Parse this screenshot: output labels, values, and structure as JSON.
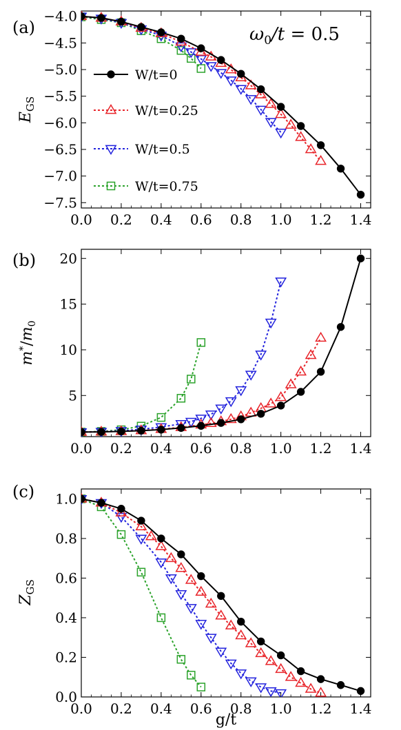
{
  "colors": {
    "W/t=0": "#000000",
    "W/t=0.25": "#e8242a",
    "W/t=0.5": "#2222dd",
    "W/t=0.75": "#2aa22a"
  },
  "chart_data": [
    {
      "type": "line",
      "panel_label": "(a)",
      "ylabel": "E_GS",
      "xlabel": "",
      "annotation": "ω0/t = 0.5",
      "xlim": [
        0,
        1.45
      ],
      "ylim": [
        -7.6,
        -3.9
      ],
      "xticks": [
        0.0,
        0.2,
        0.4,
        0.6,
        0.8,
        1.0,
        1.2,
        1.4
      ],
      "xtick_labels": [
        "0.0",
        "0.2",
        "0.4",
        "0.6",
        "0.8",
        "1.0",
        "1.2",
        "1.4"
      ],
      "yticks": [
        -4.0,
        -4.5,
        -5.0,
        -5.5,
        -6.0,
        -6.5,
        -7.0,
        -7.5
      ],
      "ytick_labels": [
        "−4.0",
        "−4.5",
        "−5.0",
        "−5.5",
        "−6.0",
        "−6.5",
        "−7.0",
        "−7.5"
      ],
      "legend": "inside-left",
      "series": [
        {
          "name": "W/t=0",
          "marker": "circle",
          "dash": false,
          "x": [
            0,
            0.1,
            0.2,
            0.3,
            0.4,
            0.5,
            0.6,
            0.7,
            0.8,
            0.9,
            1.0,
            1.1,
            1.2,
            1.3,
            1.4
          ],
          "y": [
            -4.0,
            -4.03,
            -4.1,
            -4.2,
            -4.3,
            -4.42,
            -4.6,
            -4.82,
            -5.08,
            -5.37,
            -5.7,
            -6.06,
            -6.42,
            -6.86,
            -7.35
          ]
        },
        {
          "name": "W/t=0.25",
          "marker": "triangle-up",
          "dash": true,
          "x": [
            0,
            0.1,
            0.2,
            0.3,
            0.4,
            0.5,
            0.6,
            0.65,
            0.7,
            0.75,
            0.8,
            0.85,
            0.9,
            0.95,
            1.0,
            1.05,
            1.1,
            1.15,
            1.2
          ],
          "y": [
            -4.0,
            -4.03,
            -4.1,
            -4.22,
            -4.32,
            -4.48,
            -4.67,
            -4.76,
            -4.88,
            -5.0,
            -5.15,
            -5.3,
            -5.47,
            -5.65,
            -5.84,
            -6.04,
            -6.27,
            -6.5,
            -6.72
          ]
        },
        {
          "name": "W/t=0.5",
          "marker": "triangle-down",
          "dash": true,
          "x": [
            0,
            0.1,
            0.2,
            0.3,
            0.4,
            0.5,
            0.55,
            0.6,
            0.65,
            0.7,
            0.75,
            0.8,
            0.85,
            0.9,
            0.95,
            1.0
          ],
          "y": [
            -4.0,
            -4.04,
            -4.12,
            -4.24,
            -4.36,
            -4.56,
            -4.67,
            -4.8,
            -4.93,
            -5.06,
            -5.2,
            -5.36,
            -5.55,
            -5.75,
            -5.98,
            -6.18
          ]
        },
        {
          "name": "W/t=0.75",
          "marker": "square",
          "dash": true,
          "x": [
            0,
            0.1,
            0.2,
            0.3,
            0.4,
            0.5,
            0.55,
            0.6
          ],
          "y": [
            -4.01,
            -4.06,
            -4.12,
            -4.27,
            -4.42,
            -4.64,
            -4.79,
            -4.98
          ]
        }
      ]
    },
    {
      "type": "line",
      "panel_label": "(b)",
      "ylabel": "m*/m0",
      "xlabel": "",
      "xlim": [
        0,
        1.45
      ],
      "ylim": [
        0.5,
        21
      ],
      "xticks": [
        0.0,
        0.2,
        0.4,
        0.6,
        0.8,
        1.0,
        1.2,
        1.4
      ],
      "xtick_labels": [
        "0.0",
        "0.2",
        "0.4",
        "0.6",
        "0.8",
        "1.0",
        "1.2",
        "1.4"
      ],
      "yticks": [
        5,
        10,
        15,
        20
      ],
      "ytick_labels": [
        "5",
        "10",
        "15",
        "20"
      ],
      "series": [
        {
          "name": "W/t=0",
          "marker": "circle",
          "dash": false,
          "x": [
            0,
            0.1,
            0.2,
            0.3,
            0.4,
            0.5,
            0.6,
            0.7,
            0.8,
            0.9,
            1.0,
            1.1,
            1.2,
            1.3,
            1.4
          ],
          "y": [
            1.0,
            1.02,
            1.07,
            1.15,
            1.27,
            1.45,
            1.68,
            2.0,
            2.4,
            3.0,
            3.9,
            5.4,
            7.6,
            12.5,
            20.0
          ]
        },
        {
          "name": "W/t=0.25",
          "marker": "triangle-up",
          "dash": true,
          "x": [
            0,
            0.1,
            0.2,
            0.3,
            0.4,
            0.5,
            0.6,
            0.65,
            0.7,
            0.75,
            0.8,
            0.85,
            0.9,
            0.95,
            1.0,
            1.05,
            1.1,
            1.15,
            1.2
          ],
          "y": [
            1.0,
            1.03,
            1.08,
            1.17,
            1.31,
            1.52,
            1.8,
            1.96,
            2.16,
            2.4,
            2.7,
            3.1,
            3.6,
            4.1,
            4.8,
            6.2,
            7.6,
            9.4,
            11.3
          ]
        },
        {
          "name": "W/t=0.5",
          "marker": "triangle-down",
          "dash": true,
          "x": [
            0,
            0.1,
            0.2,
            0.3,
            0.4,
            0.5,
            0.55,
            0.6,
            0.65,
            0.7,
            0.75,
            0.8,
            0.85,
            0.9,
            0.95,
            1.0
          ],
          "y": [
            1.0,
            1.04,
            1.14,
            1.3,
            1.55,
            1.9,
            2.15,
            2.5,
            2.95,
            3.6,
            4.4,
            5.6,
            7.3,
            9.5,
            13.0,
            17.5
          ]
        },
        {
          "name": "W/t=0.75",
          "marker": "square",
          "dash": true,
          "x": [
            0,
            0.1,
            0.2,
            0.3,
            0.4,
            0.5,
            0.55,
            0.6
          ],
          "y": [
            1.0,
            1.07,
            1.25,
            1.65,
            2.6,
            4.7,
            6.8,
            10.8
          ]
        }
      ]
    },
    {
      "type": "line",
      "panel_label": "(c)",
      "ylabel": "Z_GS",
      "xlabel": "g/t",
      "xlim": [
        0,
        1.45
      ],
      "ylim": [
        0,
        1.05
      ],
      "xticks": [
        0.0,
        0.2,
        0.4,
        0.6,
        0.8,
        1.0,
        1.2,
        1.4
      ],
      "xtick_labels": [
        "0.0",
        "0.2",
        "0.4",
        "0.6",
        "0.8",
        "1.0",
        "1.2",
        "1.4"
      ],
      "yticks": [
        0.0,
        0.2,
        0.4,
        0.6,
        0.8,
        1.0
      ],
      "ytick_labels": [
        "0.0",
        "0.2",
        "0.4",
        "0.6",
        "0.8",
        "1.0"
      ],
      "series": [
        {
          "name": "W/t=0",
          "marker": "circle",
          "dash": false,
          "x": [
            0,
            0.1,
            0.2,
            0.3,
            0.4,
            0.5,
            0.6,
            0.7,
            0.8,
            0.9,
            1.0,
            1.1,
            1.2,
            1.3,
            1.4
          ],
          "y": [
            1.0,
            0.98,
            0.95,
            0.89,
            0.8,
            0.72,
            0.61,
            0.51,
            0.38,
            0.28,
            0.21,
            0.13,
            0.09,
            0.06,
            0.03
          ]
        },
        {
          "name": "W/t=0.25",
          "marker": "triangle-up",
          "dash": true,
          "x": [
            0,
            0.1,
            0.2,
            0.3,
            0.35,
            0.4,
            0.45,
            0.5,
            0.55,
            0.6,
            0.65,
            0.7,
            0.75,
            0.8,
            0.85,
            0.9,
            0.95,
            1.0,
            1.05,
            1.1,
            1.15,
            1.2
          ],
          "y": [
            1.0,
            0.98,
            0.93,
            0.86,
            0.81,
            0.76,
            0.7,
            0.65,
            0.59,
            0.53,
            0.47,
            0.41,
            0.36,
            0.31,
            0.27,
            0.22,
            0.18,
            0.14,
            0.1,
            0.07,
            0.04,
            0.02
          ]
        },
        {
          "name": "W/t=0.5",
          "marker": "triangle-down",
          "dash": true,
          "x": [
            0,
            0.1,
            0.2,
            0.3,
            0.4,
            0.45,
            0.5,
            0.55,
            0.6,
            0.65,
            0.7,
            0.75,
            0.8,
            0.85,
            0.9,
            0.95,
            1.0
          ],
          "y": [
            1.0,
            0.98,
            0.91,
            0.8,
            0.68,
            0.6,
            0.52,
            0.45,
            0.37,
            0.3,
            0.23,
            0.17,
            0.12,
            0.08,
            0.05,
            0.03,
            0.02
          ]
        },
        {
          "name": "W/t=0.75",
          "marker": "square",
          "dash": true,
          "x": [
            0,
            0.1,
            0.2,
            0.3,
            0.4,
            0.5,
            0.55,
            0.6
          ],
          "y": [
            1.0,
            0.96,
            0.82,
            0.63,
            0.4,
            0.19,
            0.11,
            0.05
          ]
        }
      ]
    }
  ]
}
